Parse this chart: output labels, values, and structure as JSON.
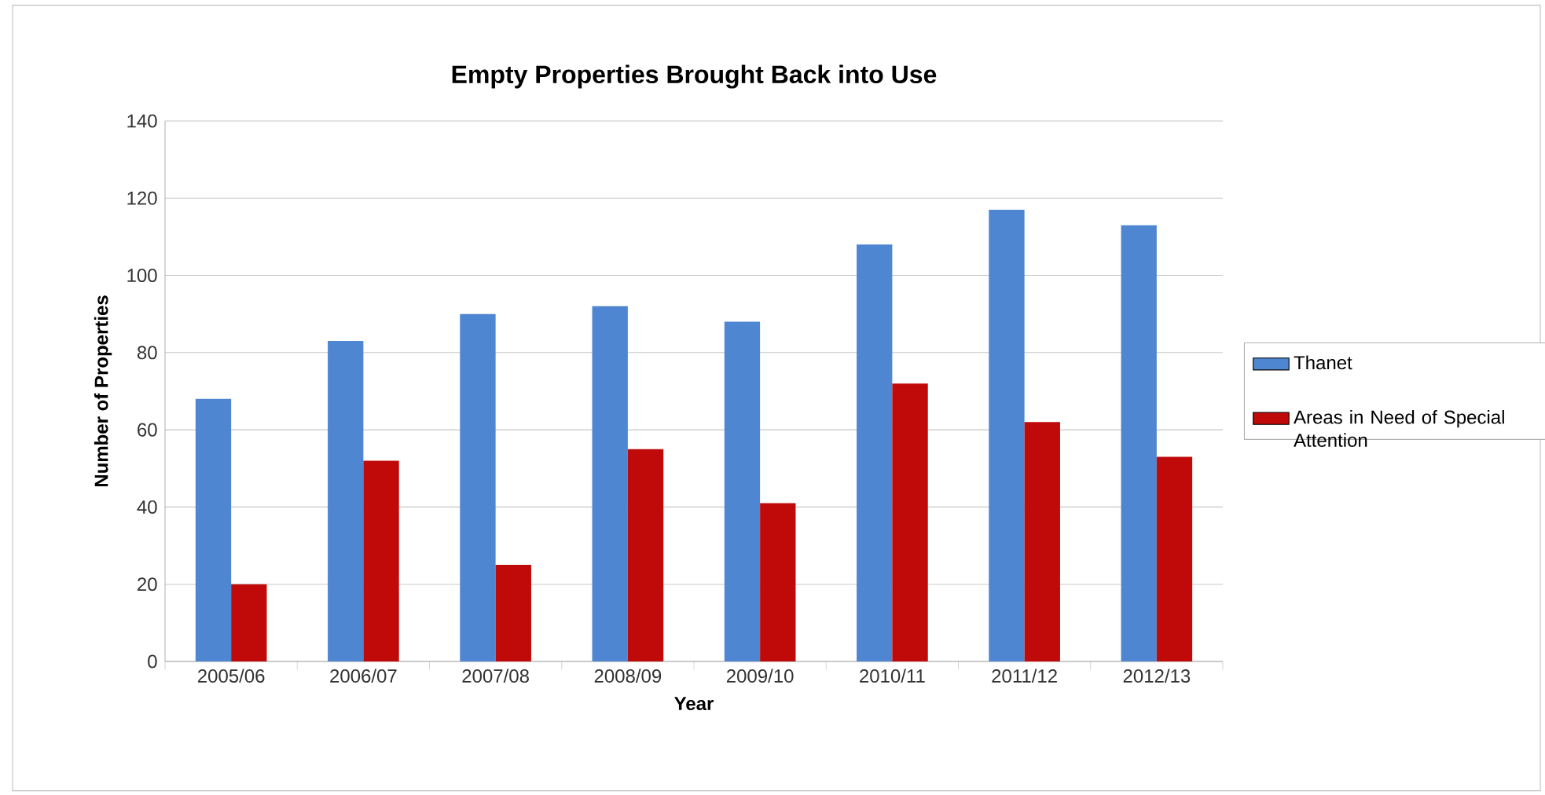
{
  "chart_data": {
    "type": "bar",
    "title": "Empty Properties Brought Back into Use",
    "xlabel": "Year",
    "ylabel": "Number of Properties",
    "categories": [
      "2005/06",
      "2006/07",
      "2007/08",
      "2008/09",
      "2009/10",
      "2010/11",
      "2011/12",
      "2012/13"
    ],
    "series": [
      {
        "name": "Thanet",
        "color": "#4f86d1",
        "values": [
          68,
          83,
          90,
          92,
          88,
          108,
          117,
          113
        ]
      },
      {
        "name": "Areas in Need of Special Attention",
        "color": "#c00a0a",
        "values": [
          20,
          52,
          25,
          55,
          41,
          72,
          62,
          53
        ]
      }
    ],
    "ylim": [
      0,
      140
    ],
    "yticks": [
      0,
      20,
      40,
      60,
      80,
      100,
      120,
      140
    ],
    "grid": "y",
    "legend": "right"
  }
}
